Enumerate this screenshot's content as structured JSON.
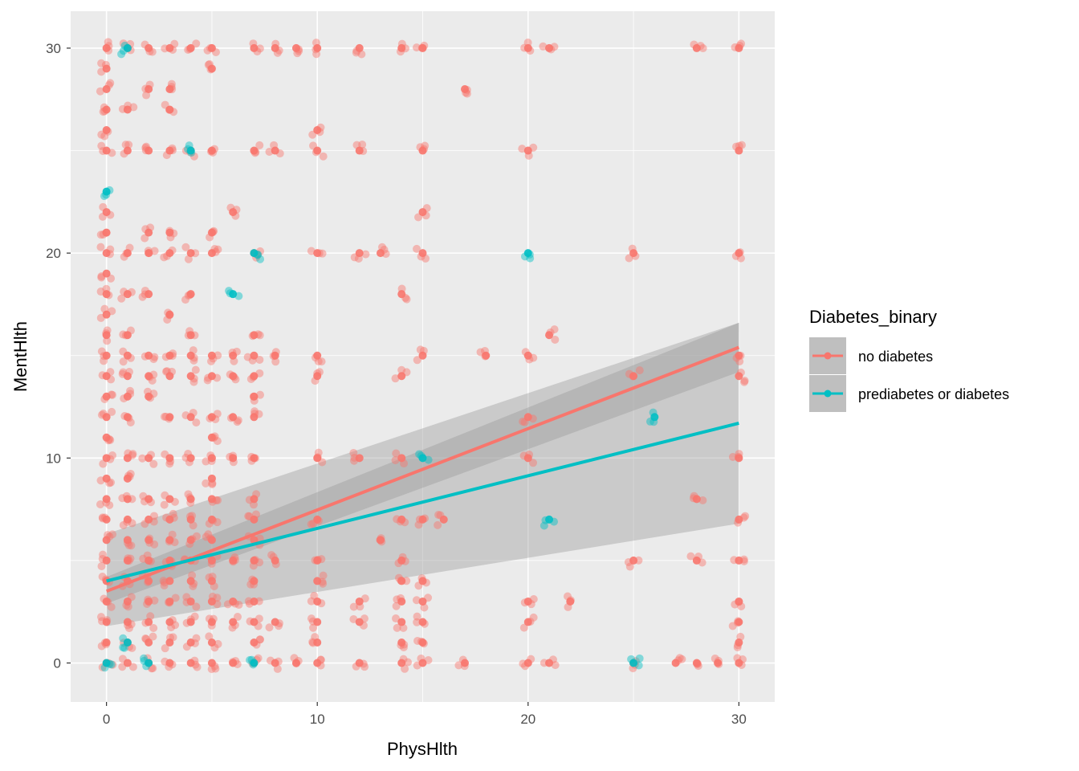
{
  "chart_data": {
    "type": "scatter",
    "xlabel": "PhysHlth",
    "ylabel": "MentHlth",
    "xlim": [
      -1.7,
      31.7
    ],
    "ylim": [
      -1.9,
      31.8
    ],
    "x_ticks": [
      0,
      10,
      20,
      30
    ],
    "y_ticks": [
      0,
      10,
      20,
      30
    ],
    "grid": true,
    "legend": {
      "title": "Diabetes_binary",
      "placement": "right",
      "entries": [
        "no diabetes",
        "prediabetes or diabetes"
      ]
    },
    "series": [
      {
        "name": "no diabetes",
        "color": "#F8766D",
        "points": [
          [
            0,
            30
          ],
          [
            1,
            30
          ],
          [
            2,
            30
          ],
          [
            3,
            30
          ],
          [
            4,
            30
          ],
          [
            5,
            30
          ],
          [
            7,
            30
          ],
          [
            8,
            30
          ],
          [
            9,
            30
          ],
          [
            10,
            30
          ],
          [
            12,
            30
          ],
          [
            14,
            30
          ],
          [
            15,
            30
          ],
          [
            20,
            30
          ],
          [
            21,
            30
          ],
          [
            28,
            30
          ],
          [
            30,
            30
          ],
          [
            0,
            29
          ],
          [
            5,
            29
          ],
          [
            0,
            28
          ],
          [
            2,
            28
          ],
          [
            3,
            28
          ],
          [
            17,
            28
          ],
          [
            0,
            27
          ],
          [
            1,
            27
          ],
          [
            3,
            27
          ],
          [
            0,
            26
          ],
          [
            10,
            26
          ],
          [
            0,
            25
          ],
          [
            1,
            25
          ],
          [
            2,
            25
          ],
          [
            3,
            25
          ],
          [
            4,
            25
          ],
          [
            5,
            25
          ],
          [
            7,
            25
          ],
          [
            8,
            25
          ],
          [
            10,
            25
          ],
          [
            12,
            25
          ],
          [
            15,
            25
          ],
          [
            20,
            25
          ],
          [
            30,
            25
          ],
          [
            0,
            22
          ],
          [
            6,
            22
          ],
          [
            15,
            22
          ],
          [
            0,
            21
          ],
          [
            2,
            21
          ],
          [
            3,
            21
          ],
          [
            5,
            21
          ],
          [
            0,
            20
          ],
          [
            1,
            20
          ],
          [
            2,
            20
          ],
          [
            3,
            20
          ],
          [
            4,
            20
          ],
          [
            5,
            20
          ],
          [
            7,
            20
          ],
          [
            10,
            20
          ],
          [
            12,
            20
          ],
          [
            13,
            20
          ],
          [
            15,
            20
          ],
          [
            25,
            20
          ],
          [
            30,
            20
          ],
          [
            0,
            19
          ],
          [
            0,
            18
          ],
          [
            1,
            18
          ],
          [
            2,
            18
          ],
          [
            4,
            18
          ],
          [
            14,
            18
          ],
          [
            0,
            17
          ],
          [
            3,
            17
          ],
          [
            0,
            16
          ],
          [
            1,
            16
          ],
          [
            4,
            16
          ],
          [
            7,
            16
          ],
          [
            21,
            16
          ],
          [
            0,
            15
          ],
          [
            1,
            15
          ],
          [
            2,
            15
          ],
          [
            3,
            15
          ],
          [
            4,
            15
          ],
          [
            5,
            15
          ],
          [
            6,
            15
          ],
          [
            7,
            15
          ],
          [
            8,
            15
          ],
          [
            10,
            15
          ],
          [
            15,
            15
          ],
          [
            18,
            15
          ],
          [
            20,
            15
          ],
          [
            30,
            15
          ],
          [
            0,
            14
          ],
          [
            1,
            14
          ],
          [
            2,
            14
          ],
          [
            3,
            14
          ],
          [
            4,
            14
          ],
          [
            5,
            14
          ],
          [
            6,
            14
          ],
          [
            7,
            14
          ],
          [
            10,
            14
          ],
          [
            14,
            14
          ],
          [
            25,
            14
          ],
          [
            30,
            14
          ],
          [
            0,
            13
          ],
          [
            1,
            13
          ],
          [
            2,
            13
          ],
          [
            7,
            13
          ],
          [
            0,
            12
          ],
          [
            1,
            12
          ],
          [
            3,
            12
          ],
          [
            4,
            12
          ],
          [
            5,
            12
          ],
          [
            6,
            12
          ],
          [
            7,
            12
          ],
          [
            20,
            12
          ],
          [
            0,
            11
          ],
          [
            5,
            11
          ],
          [
            0,
            10
          ],
          [
            1,
            10
          ],
          [
            2,
            10
          ],
          [
            3,
            10
          ],
          [
            4,
            10
          ],
          [
            5,
            10
          ],
          [
            6,
            10
          ],
          [
            7,
            10
          ],
          [
            10,
            10
          ],
          [
            12,
            10
          ],
          [
            14,
            10
          ],
          [
            20,
            10
          ],
          [
            30,
            10
          ],
          [
            0,
            9
          ],
          [
            1,
            9
          ],
          [
            5,
            9
          ],
          [
            0,
            8
          ],
          [
            1,
            8
          ],
          [
            2,
            8
          ],
          [
            3,
            8
          ],
          [
            4,
            8
          ],
          [
            5,
            8
          ],
          [
            7,
            8
          ],
          [
            28,
            8
          ],
          [
            0,
            7
          ],
          [
            1,
            7
          ],
          [
            2,
            7
          ],
          [
            3,
            7
          ],
          [
            4,
            7
          ],
          [
            5,
            7
          ],
          [
            7,
            7
          ],
          [
            10,
            7
          ],
          [
            14,
            7
          ],
          [
            15,
            7
          ],
          [
            16,
            7
          ],
          [
            30,
            7
          ],
          [
            0,
            6
          ],
          [
            1,
            6
          ],
          [
            2,
            6
          ],
          [
            3,
            6
          ],
          [
            4,
            6
          ],
          [
            5,
            6
          ],
          [
            7,
            6
          ],
          [
            13,
            6
          ],
          [
            0,
            5
          ],
          [
            1,
            5
          ],
          [
            2,
            5
          ],
          [
            3,
            5
          ],
          [
            4,
            5
          ],
          [
            5,
            5
          ],
          [
            6,
            5
          ],
          [
            7,
            5
          ],
          [
            8,
            5
          ],
          [
            10,
            5
          ],
          [
            14,
            5
          ],
          [
            25,
            5
          ],
          [
            28,
            5
          ],
          [
            30,
            5
          ],
          [
            0,
            4
          ],
          [
            1,
            4
          ],
          [
            2,
            4
          ],
          [
            3,
            4
          ],
          [
            4,
            4
          ],
          [
            5,
            4
          ],
          [
            7,
            4
          ],
          [
            10,
            4
          ],
          [
            14,
            4
          ],
          [
            15,
            4
          ],
          [
            0,
            3
          ],
          [
            1,
            3
          ],
          [
            2,
            3
          ],
          [
            3,
            3
          ],
          [
            4,
            3
          ],
          [
            5,
            3
          ],
          [
            6,
            3
          ],
          [
            7,
            3
          ],
          [
            10,
            3
          ],
          [
            12,
            3
          ],
          [
            14,
            3
          ],
          [
            15,
            3
          ],
          [
            20,
            3
          ],
          [
            22,
            3
          ],
          [
            30,
            3
          ],
          [
            0,
            2
          ],
          [
            1,
            2
          ],
          [
            2,
            2
          ],
          [
            3,
            2
          ],
          [
            4,
            2
          ],
          [
            5,
            2
          ],
          [
            6,
            2
          ],
          [
            7,
            2
          ],
          [
            8,
            2
          ],
          [
            10,
            2
          ],
          [
            12,
            2
          ],
          [
            14,
            2
          ],
          [
            15,
            2
          ],
          [
            20,
            2
          ],
          [
            30,
            2
          ],
          [
            0,
            1
          ],
          [
            1,
            1
          ],
          [
            2,
            1
          ],
          [
            3,
            1
          ],
          [
            4,
            1
          ],
          [
            5,
            1
          ],
          [
            7,
            1
          ],
          [
            10,
            1
          ],
          [
            14,
            1
          ],
          [
            15,
            1
          ],
          [
            30,
            1
          ],
          [
            0,
            0
          ],
          [
            1,
            0
          ],
          [
            2,
            0
          ],
          [
            3,
            0
          ],
          [
            4,
            0
          ],
          [
            5,
            0
          ],
          [
            6,
            0
          ],
          [
            7,
            0
          ],
          [
            8,
            0
          ],
          [
            9,
            0
          ],
          [
            10,
            0
          ],
          [
            12,
            0
          ],
          [
            14,
            0
          ],
          [
            15,
            0
          ],
          [
            17,
            0
          ],
          [
            20,
            0
          ],
          [
            21,
            0
          ],
          [
            25,
            0
          ],
          [
            27,
            0
          ],
          [
            28,
            0
          ],
          [
            29,
            0
          ],
          [
            30,
            0
          ]
        ],
        "trend": {
          "x": [
            0,
            30
          ],
          "y": [
            3.5,
            15.4
          ],
          "ci_at_x0": [
            2.9,
            4.2
          ],
          "ci_at_x30": [
            14.2,
            16.6
          ]
        }
      },
      {
        "name": "prediabetes or diabetes",
        "color": "#00BFC4",
        "points": [
          [
            1,
            30
          ],
          [
            0,
            23
          ],
          [
            4,
            25
          ],
          [
            7,
            20
          ],
          [
            20,
            20
          ],
          [
            6,
            18
          ],
          [
            15,
            10
          ],
          [
            26,
            12
          ],
          [
            21,
            7
          ],
          [
            25,
            0
          ],
          [
            7,
            0
          ],
          [
            1,
            1
          ],
          [
            0,
            0
          ],
          [
            2,
            0
          ]
        ],
        "trend": {
          "x": [
            0,
            30
          ],
          "y": [
            4.0,
            11.7
          ],
          "ci_at_x0": [
            1.8,
            6.3
          ],
          "ci_at_x30": [
            6.8,
            16.6
          ]
        }
      }
    ]
  }
}
